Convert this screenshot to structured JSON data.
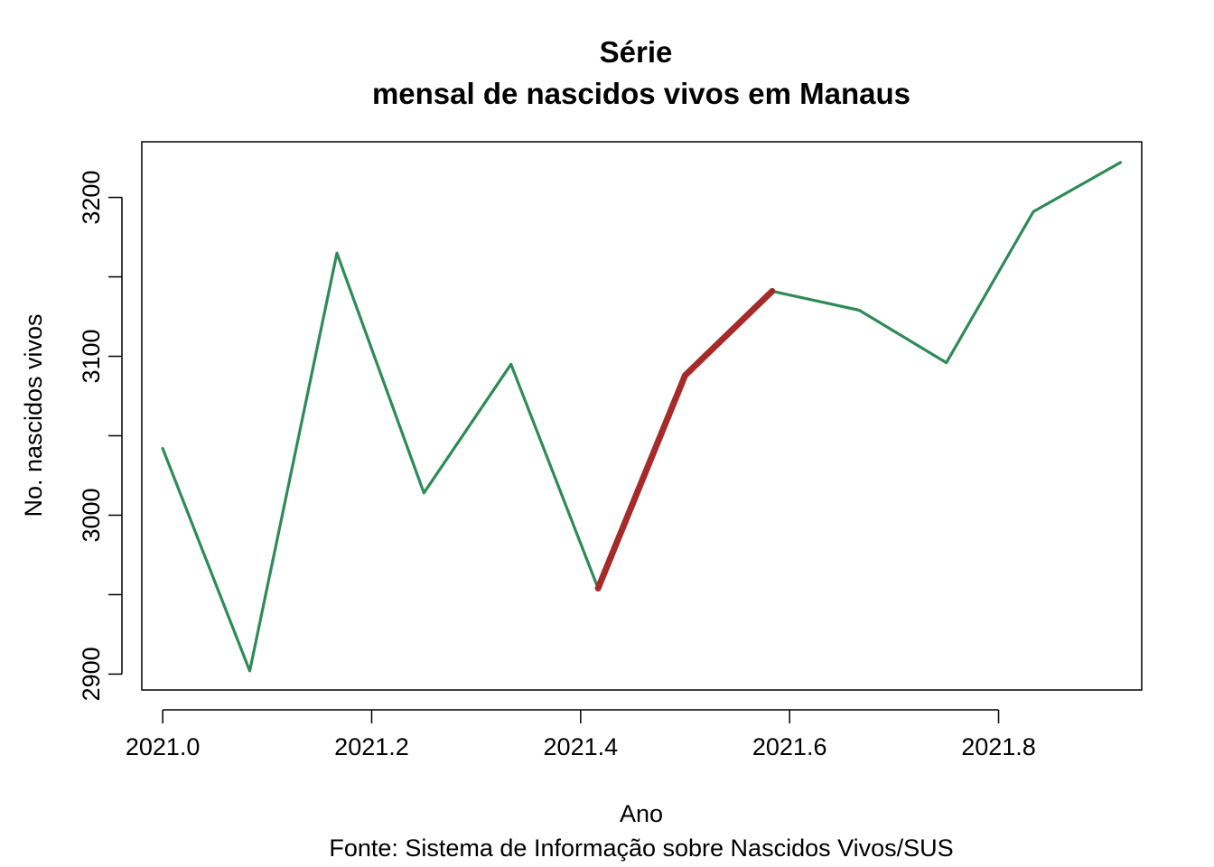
{
  "chart_data": {
    "type": "line",
    "title": "Série",
    "subtitle": "mensal de nascidos vivos em Manaus",
    "xlabel": "Ano",
    "ylabel": "No. nascidos vivos",
    "caption": "Fonte: Sistema de Informação sobre Nascidos Vivos/SUS",
    "x": [
      2021.0,
      2021.0833,
      2021.1667,
      2021.25,
      2021.3333,
      2021.4167,
      2021.5,
      2021.5833,
      2021.6667,
      2021.75,
      2021.8333,
      2021.9167
    ],
    "values": [
      3042,
      2902,
      3165,
      3014,
      3095,
      2954,
      3088,
      3141,
      3129,
      3096,
      3191,
      3222
    ],
    "highlight_range": [
      5,
      7
    ],
    "xlim": [
      2020.98,
      2021.937
    ],
    "ylim": [
      2890,
      3235
    ],
    "xticks": [
      2021.0,
      2021.2,
      2021.4,
      2021.6,
      2021.8
    ],
    "xtick_labels": [
      "2021.0",
      "2021.2",
      "2021.4",
      "2021.6",
      "2021.8"
    ],
    "yticks": [
      2900,
      2950,
      3000,
      3050,
      3100,
      3150,
      3200
    ],
    "ytick_labels": [
      "2900",
      "",
      "3000",
      "",
      "3100",
      "",
      "3200"
    ],
    "grid": false,
    "colors": {
      "series": "#2e8b57",
      "highlight": "#a52a2a"
    }
  }
}
